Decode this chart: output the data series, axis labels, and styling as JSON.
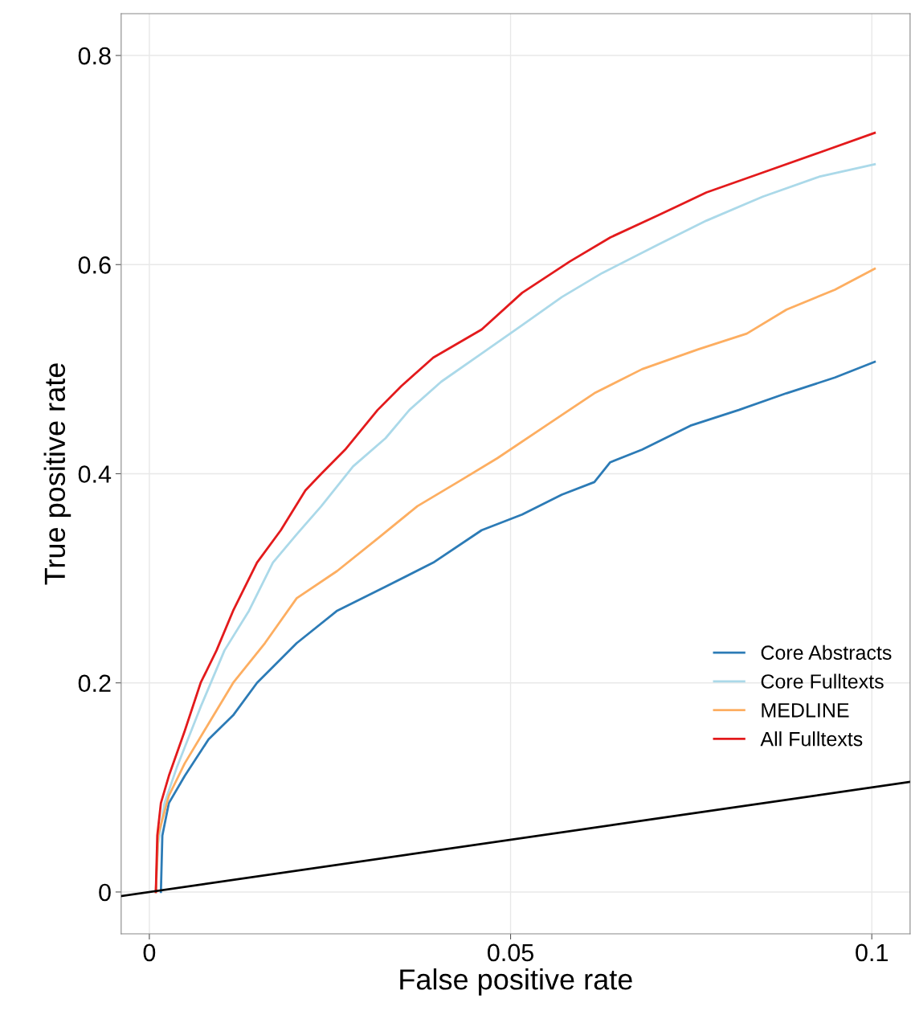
{
  "chart_data": {
    "type": "line",
    "xlabel": "False positive rate",
    "ylabel": "True positive rate",
    "xlim": [
      -0.0039,
      0.1053
    ],
    "ylim": [
      -0.04,
      0.84
    ],
    "xticks": [
      0,
      0.05,
      0.1
    ],
    "yticks": [
      0,
      0.2,
      0.4,
      0.6,
      0.8
    ],
    "grid": true,
    "legend": "bottom right",
    "line_style": "solid",
    "marker": "none",
    "series": [
      {
        "name": "Core Abstracts",
        "color": "#2c7bb6",
        "x": [
          0.0016,
          0.0018,
          0.0027,
          0.0049,
          0.0082,
          0.0116,
          0.0149,
          0.0204,
          0.026,
          0.0327,
          0.0393,
          0.046,
          0.0516,
          0.0571,
          0.0616,
          0.0638,
          0.0682,
          0.0749,
          0.0816,
          0.0882,
          0.0949,
          0.1004
        ],
        "values": [
          0,
          0.054,
          0.085,
          0.111,
          0.146,
          0.169,
          0.2,
          0.238,
          0.269,
          0.292,
          0.315,
          0.346,
          0.361,
          0.38,
          0.392,
          0.411,
          0.423,
          0.446,
          0.461,
          0.477,
          0.492,
          0.507
        ]
      },
      {
        "name": "Core Fulltexts",
        "color": "#abd9e9",
        "x": [
          0.0009,
          0.0012,
          0.0021,
          0.0038,
          0.0071,
          0.0104,
          0.0138,
          0.0171,
          0.0204,
          0.0238,
          0.0282,
          0.0327,
          0.036,
          0.0404,
          0.046,
          0.0516,
          0.0571,
          0.0627,
          0.0704,
          0.0771,
          0.0849,
          0.0927,
          0.1004
        ],
        "values": [
          0,
          0.046,
          0.085,
          0.119,
          0.177,
          0.231,
          0.269,
          0.315,
          0.342,
          0.369,
          0.407,
          0.434,
          0.461,
          0.488,
          0.515,
          0.542,
          0.569,
          0.592,
          0.619,
          0.642,
          0.665,
          0.684,
          0.696
        ]
      },
      {
        "name": "MEDLINE",
        "color": "#fdae61",
        "x": [
          0.0009,
          0.0012,
          0.0027,
          0.0049,
          0.0082,
          0.0116,
          0.016,
          0.0204,
          0.026,
          0.0316,
          0.0371,
          0.0427,
          0.0482,
          0.0549,
          0.0616,
          0.0682,
          0.076,
          0.0827,
          0.0882,
          0.0949,
          0.1004
        ],
        "values": [
          0,
          0.054,
          0.092,
          0.123,
          0.161,
          0.2,
          0.238,
          0.281,
          0.307,
          0.338,
          0.369,
          0.392,
          0.415,
          0.446,
          0.477,
          0.5,
          0.519,
          0.534,
          0.557,
          0.576,
          0.596
        ]
      },
      {
        "name": "All Fulltexts",
        "color": "#e31a1c",
        "x": [
          0.0009,
          0.0011,
          0.0016,
          0.0027,
          0.0049,
          0.0071,
          0.0093,
          0.0116,
          0.0149,
          0.0182,
          0.0216,
          0.0238,
          0.0271,
          0.0316,
          0.0349,
          0.0393,
          0.046,
          0.0516,
          0.0582,
          0.0638,
          0.0704,
          0.0771,
          0.0849,
          0.0927,
          0.1004
        ],
        "values": [
          0,
          0.054,
          0.085,
          0.111,
          0.154,
          0.2,
          0.231,
          0.269,
          0.315,
          0.346,
          0.384,
          0.4,
          0.423,
          0.461,
          0.484,
          0.511,
          0.538,
          0.573,
          0.603,
          0.626,
          0.647,
          0.669,
          0.688,
          0.707,
          0.726
        ]
      },
      {
        "color": "#000000",
        "x": [
          -0.0039,
          0.1053
        ],
        "values": [
          -0.0039,
          0.1053
        ]
      }
    ]
  }
}
